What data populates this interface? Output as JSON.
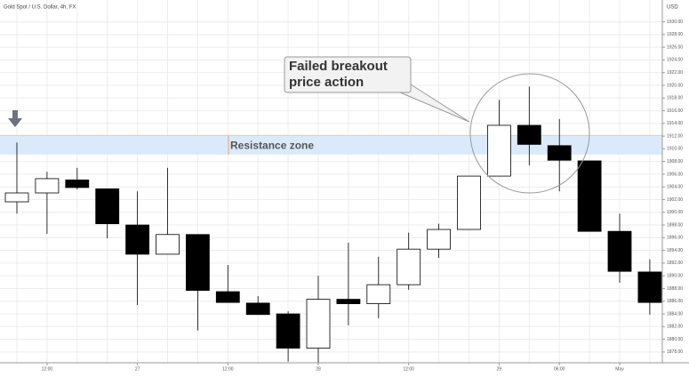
{
  "chart_data": {
    "type": "candlestick",
    "title": "Gold Spot / U.S. Dollar, 4h, FX",
    "y_axis_label": "USD",
    "categories": [
      null,
      "12:00",
      null,
      null,
      "27",
      null,
      null,
      "12:00",
      null,
      null,
      "28",
      null,
      null,
      "12:00",
      null,
      null,
      "29",
      null,
      "06:00",
      null,
      "May",
      null
    ],
    "open": [
      1901.65,
      1903.05,
      1905.1,
      1903.7,
      1898.0,
      1893.4,
      1896.5,
      1887.5,
      1885.7,
      1884.0,
      1878.6,
      1886.3,
      1885.6,
      1888.6,
      1894.2,
      1897.3,
      1905.7,
      1913.7,
      1910.5,
      1908.1,
      1897.0,
      1890.6
    ],
    "high": [
      1911.0,
      1906.4,
      1907.0,
      1903.7,
      1903.3,
      1907.0,
      1896.5,
      1891.7,
      1886.8,
      1884.4,
      1890.0,
      1895.2,
      1893.0,
      1896.8,
      1898.2,
      1905.7,
      1917.7,
      1919.8,
      1914.7,
      1908.1,
      1899.8,
      1892.6
    ],
    "low": [
      1899.8,
      1896.6,
      1903.6,
      1895.9,
      1885.4,
      1893.4,
      1881.4,
      1885.8,
      1883.9,
      1876.5,
      1876.3,
      1882.2,
      1883.3,
      1887.8,
      1892.8,
      1897.3,
      1905.7,
      1907.4,
      1903.3,
      1897.0,
      1888.9,
      1883.9
    ],
    "close": [
      1903.05,
      1905.3,
      1903.9,
      1898.2,
      1893.4,
      1896.5,
      1887.7,
      1885.8,
      1883.9,
      1878.6,
      1886.3,
      1885.6,
      1888.6,
      1894.2,
      1897.3,
      1905.7,
      1913.7,
      1910.7,
      1908.2,
      1897.0,
      1890.7,
      1885.8
    ],
    "up_color": "#ffffff",
    "down_color": "#000000",
    "ylim": [
      1876.3,
      1932.6
    ],
    "yticks": [
      {
        "value": 1878,
        "label": "1878.00"
      },
      {
        "value": 1880,
        "label": "1880.00"
      },
      {
        "value": 1882,
        "label": "1882.00"
      },
      {
        "value": 1884,
        "label": "1884.00"
      },
      {
        "value": 1886,
        "label": "1886.00"
      },
      {
        "value": 1888,
        "label": "1888.00"
      },
      {
        "value": 1890,
        "label": "1890.00"
      },
      {
        "value": 1892,
        "label": "1892.00"
      },
      {
        "value": 1894,
        "label": "1894.00"
      },
      {
        "value": 1896,
        "label": "1896.00"
      },
      {
        "value": 1898,
        "label": "1898.00"
      },
      {
        "value": 1900,
        "label": "1900.00"
      },
      {
        "value": 1902,
        "label": "1902.00"
      },
      {
        "value": 1904,
        "label": "1904.00"
      },
      {
        "value": 1906,
        "label": "1906.00"
      },
      {
        "value": 1908,
        "label": "1908.00"
      },
      {
        "value": 1910,
        "label": "1910.00"
      },
      {
        "value": 1912,
        "label": "1912.00"
      },
      {
        "value": 1914,
        "label": "1914.00"
      },
      {
        "value": 1916,
        "label": "1916.00"
      },
      {
        "value": 1918,
        "label": "1918.00"
      },
      {
        "value": 1920,
        "label": "1920.00"
      },
      {
        "value": 1922,
        "label": "1922.00"
      },
      {
        "value": 1924,
        "label": "1924.00"
      },
      {
        "value": 1926,
        "label": "1926.00"
      },
      {
        "value": 1928,
        "label": "1928.00"
      },
      {
        "value": 1930,
        "label": "1930.00"
      }
    ],
    "grid": true,
    "resistance_zone": {
      "label": "Resistance zone",
      "range": [
        1909.1,
        1912.1
      ],
      "color": "#dbeafa"
    },
    "annotation": {
      "lines": [
        "Failed breakout",
        "price action"
      ]
    }
  }
}
